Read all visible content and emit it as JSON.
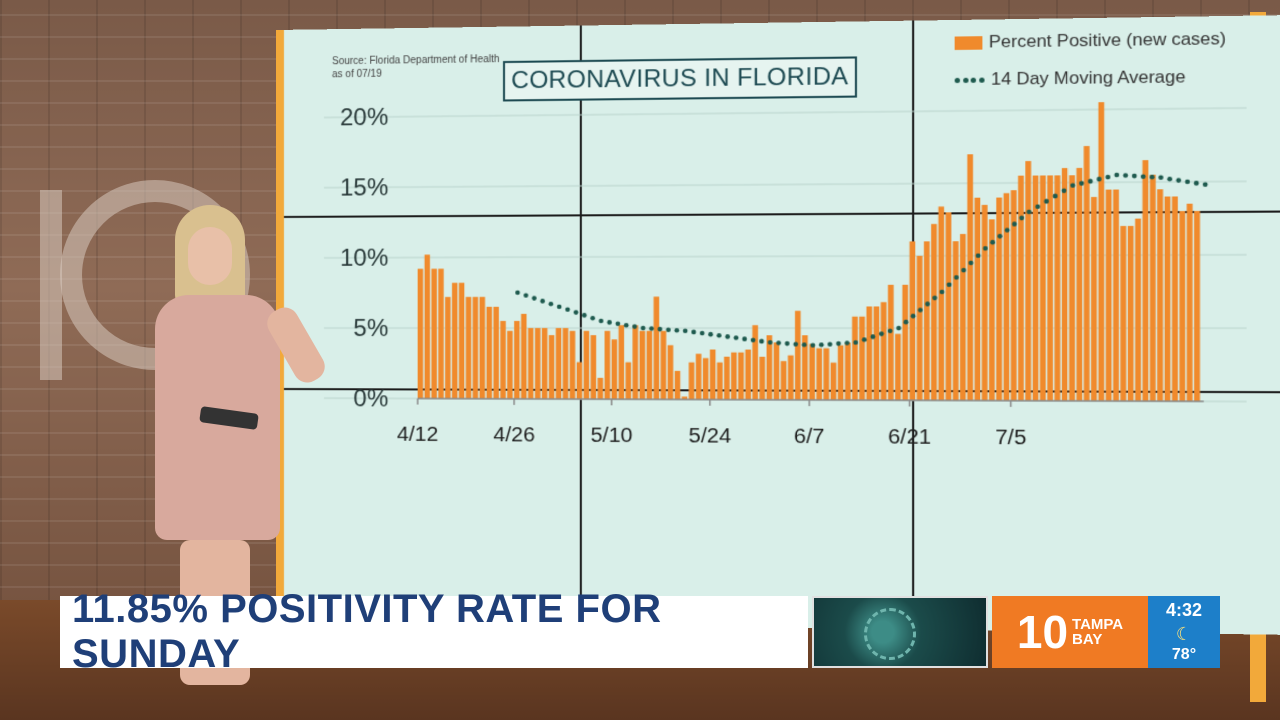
{
  "source": {
    "line1": "Source: Florida Department of Health",
    "line2": "as of 07/19"
  },
  "legend": {
    "bar_label": "Percent Positive (new cases)",
    "line_label": "14 Day Moving Average"
  },
  "colors": {
    "bar": "#f08a2c",
    "moving_average": "#1e5a4e",
    "screen": "#d9efe9",
    "headline_text": "#1f3f78",
    "brand": "#f07a23",
    "weather": "#1d7fc9"
  },
  "chart_data": {
    "type": "bar",
    "title": "CORONAVIRUS IN FLORIDA",
    "xlabel": "",
    "ylabel": "",
    "ylim": [
      0,
      20
    ],
    "yticks": [
      "0%",
      "5%",
      "10%",
      "15%",
      "20%"
    ],
    "ytick_values": [
      0,
      5,
      10,
      15,
      20
    ],
    "xtick_labels": [
      "4/12",
      "4/26",
      "5/10",
      "5/24",
      "6/7",
      "6/21",
      "7/5"
    ],
    "xtick_day_index": [
      0,
      14,
      28,
      42,
      56,
      70,
      84
    ],
    "series": [
      {
        "name": "Percent Positive (new cases)",
        "type": "bar",
        "values": [
          9.2,
          10.2,
          9.2,
          9.2,
          7.2,
          8.2,
          8.2,
          7.2,
          7.2,
          7.2,
          6.5,
          6.5,
          5.5,
          4.8,
          5.5,
          6.0,
          5.0,
          5.0,
          5.0,
          4.5,
          5.0,
          5.0,
          4.8,
          2.6,
          4.8,
          4.5,
          1.5,
          4.8,
          4.2,
          5.2,
          2.6,
          5.2,
          4.8,
          4.8,
          7.2,
          4.8,
          3.8,
          2.0,
          0.2,
          2.6,
          3.2,
          2.9,
          3.5,
          2.6,
          3.0,
          3.3,
          3.3,
          3.5,
          5.2,
          3.0,
          4.5,
          4.0,
          2.7,
          3.1,
          6.2,
          4.5,
          3.9,
          3.6,
          3.6,
          2.6,
          3.8,
          4.0,
          5.8,
          5.8,
          6.5,
          6.5,
          6.8,
          8.0,
          4.6,
          8.0,
          11.0,
          10.0,
          11.0,
          12.2,
          13.4,
          13.0,
          11.0,
          11.5,
          17.0,
          14.0,
          13.5,
          12.5,
          14.0,
          14.3,
          14.5,
          15.5,
          16.5,
          15.5,
          15.5,
          15.5,
          15.5,
          16.0,
          15.5,
          16.0,
          17.5,
          14.0,
          20.5,
          14.5,
          14.5,
          12.0,
          12.0,
          12.5,
          16.5,
          15.5,
          14.5,
          14.0,
          14.0,
          13.0,
          13.5,
          13.0
        ]
      },
      {
        "name": "14 Day Moving Average",
        "type": "line",
        "x_day_index": [
          14,
          20,
          26,
          32,
          38,
          44,
          50,
          56,
          62,
          68,
          74,
          80,
          86,
          92,
          98,
          104,
          110
        ],
        "values": [
          7.5,
          6.5,
          5.5,
          5.0,
          4.8,
          4.4,
          4.0,
          3.8,
          4.0,
          5.0,
          7.5,
          10.5,
          13.0,
          14.8,
          15.5,
          15.3,
          14.8
        ]
      }
    ]
  },
  "headline": "11.85% POSITIVITY RATE FOR SUNDAY",
  "brand": {
    "number": "10",
    "line1": "TAMPA",
    "line2": "BAY"
  },
  "weather": {
    "time": "4:32",
    "icon": "moon-icon",
    "temp": "78°"
  }
}
